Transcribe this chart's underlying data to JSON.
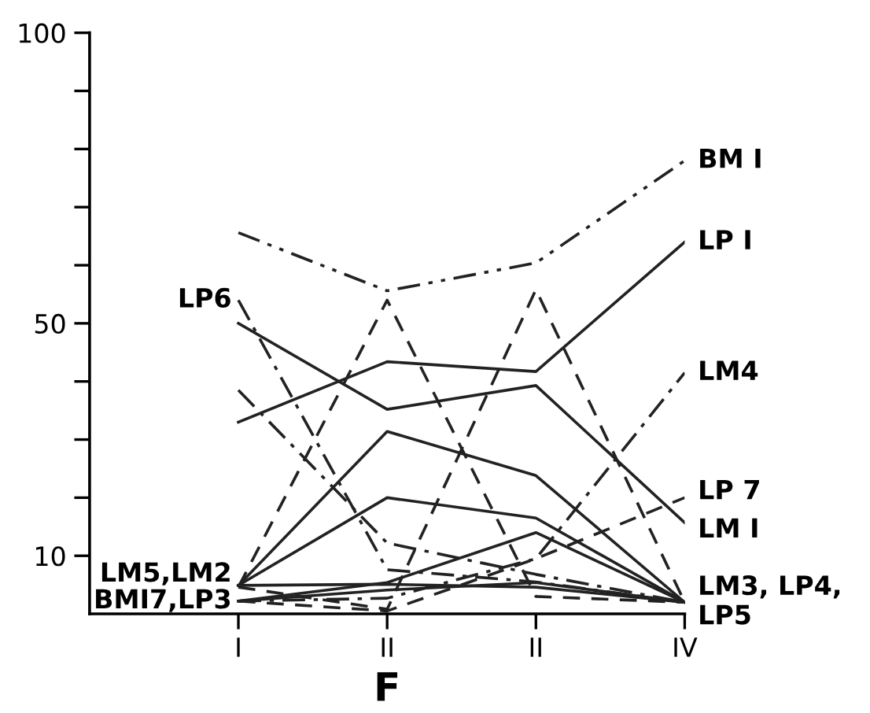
{
  "chart_data": {
    "type": "line",
    "xlabel": "F",
    "categories": [
      "I",
      "II",
      "II",
      "IV"
    ],
    "ylim": [
      0,
      100
    ],
    "yticks": [
      {
        "value": 10,
        "label": "10"
      },
      {
        "value": 20,
        "label": null
      },
      {
        "value": 30,
        "label": null
      },
      {
        "value": 40,
        "label": null
      },
      {
        "value": 50,
        "label": "50"
      },
      {
        "value": 60,
        "label": null
      },
      {
        "value": 70,
        "label": null
      },
      {
        "value": 80,
        "label": null
      },
      {
        "value": 90,
        "label": null
      },
      {
        "value": 100,
        "label": "100"
      }
    ],
    "grid": false,
    "marker": "none",
    "series": [
      {
        "color": "#222222",
        "line_style": "dashdotdot",
        "values": [
          65.6,
          55.6,
          60.4,
          78
        ]
      },
      {
        "color": "#222222",
        "line_style": "solid",
        "values": [
          33,
          43.4,
          41.7,
          64
        ]
      },
      {
        "color": "#222222",
        "line_style": "solid",
        "values": [
          50,
          35.2,
          39.3,
          15.7
        ]
      },
      {
        "color": "#222222",
        "line_style": "solid",
        "values": [
          4.9,
          31.4,
          23.8,
          2
        ]
      },
      {
        "color": "#222222",
        "line_style": "solid",
        "values": [
          4.9,
          20,
          16.5,
          2
        ]
      },
      {
        "color": "#222222",
        "line_style": "solid",
        "values": [
          2.2,
          5.4,
          14,
          2
        ]
      },
      {
        "color": "#222222",
        "line_style": "solid",
        "values": [
          4.9,
          5.1,
          4.6,
          2
        ]
      },
      {
        "color": "#222222",
        "line_style": "solid",
        "values": [
          2.2,
          4.1,
          5.4,
          2
        ]
      },
      {
        "color": "#222222",
        "line_style": "dashed",
        "values": [
          4.6,
          54,
          3,
          2
        ]
      },
      {
        "color": "#222222",
        "line_style": "dashed",
        "values": [
          4.6,
          0.8,
          55.8,
          2
        ]
      },
      {
        "color": "#222222",
        "line_style": "dashed",
        "values": [
          2.2,
          0.5,
          9.5,
          20
        ]
      },
      {
        "color": "#222222",
        "line_style": "dashdot",
        "values": [
          54,
          7.6,
          5.5,
          2
        ]
      },
      {
        "color": "#222222",
        "line_style": "dashdot",
        "values": [
          38.5,
          12.2,
          6.8,
          2
        ]
      },
      {
        "color": "#222222",
        "line_style": "dashdot",
        "values": [
          2.2,
          2.7,
          9.5,
          41.5
        ]
      }
    ],
    "annotations": [
      {
        "text": "BM I",
        "x": "IV",
        "y": 78
      },
      {
        "text": "LP I",
        "x": "IV",
        "y": 64
      },
      {
        "text": "LM4",
        "x": "IV",
        "y": 41.5
      },
      {
        "text": "LP 7",
        "x": "IV",
        "y": 21
      },
      {
        "text": "LM I",
        "x": "IV",
        "y": 14.4
      },
      {
        "text": "LM3, LP4,\nLP5",
        "x": "IV",
        "y": 2
      },
      {
        "text": "LP6",
        "x": "I",
        "y": 54
      },
      {
        "text": "LM5,LM2",
        "x": "I",
        "y": 6.8
      },
      {
        "text": "BMI7,LP3",
        "x": "I",
        "y": 2.2
      }
    ]
  }
}
